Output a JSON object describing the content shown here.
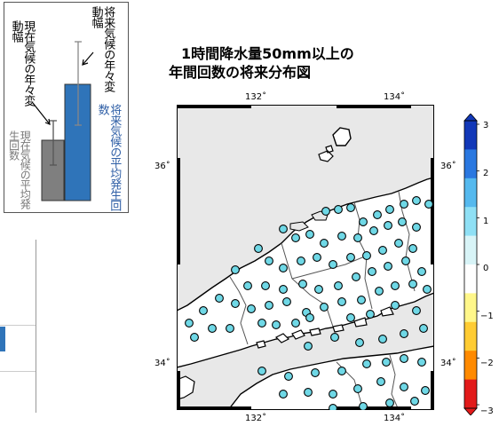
{
  "title": {
    "line1": "1時間降水量50mm以上の",
    "line2": "年間回数の将来分布図"
  },
  "legend": {
    "future_variation": "将来気候の年々変動幅",
    "present_variation": "現在気候の年々変動幅",
    "future_mean": "将来気候の平均発生回数",
    "present_mean": "現在気候の平均発生回数",
    "colors": {
      "future_bar": "#2f74b9",
      "present_bar": "#7f7f7f",
      "future_text": "#2f5fa6"
    }
  },
  "map": {
    "ticks": {
      "x_top": [
        "132˚",
        "134˚"
      ],
      "x_bottom": [
        "132˚",
        "134˚"
      ],
      "y_left": [
        "36˚",
        "34˚"
      ],
      "y_right": [
        "36˚",
        "34˚"
      ]
    },
    "colors": {
      "sea": "#e8e8e8",
      "land": "#ffffff",
      "station": "#6fd8e6"
    }
  },
  "colorbar": {
    "labels": [
      "3",
      "2",
      "1",
      "0",
      "−1",
      "−2",
      "−3"
    ],
    "colors": [
      "#1238b8",
      "#2a78e0",
      "#55b9ee",
      "#8fe0f5",
      "#d8f4f7",
      "#ffffff",
      "#fff78a",
      "#ffcc33",
      "#ff8a00",
      "#e21a1a"
    ]
  }
}
